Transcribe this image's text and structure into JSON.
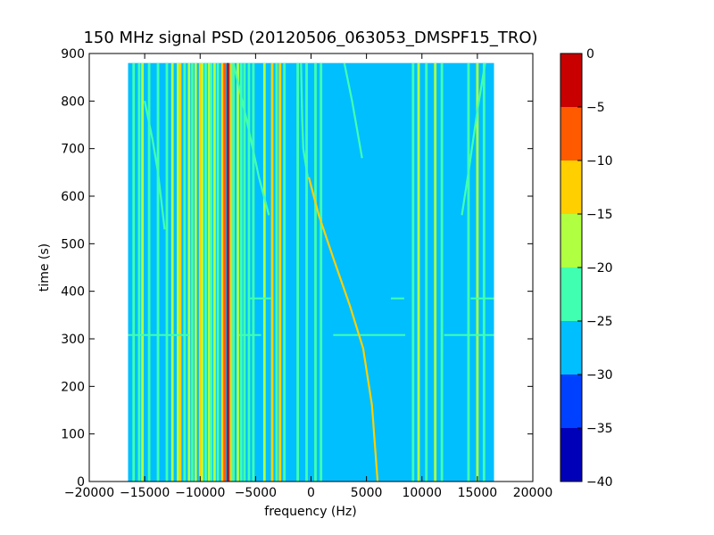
{
  "chart_data": {
    "type": "heatmap",
    "title": "150 MHz signal PSD (20120506_063053_DMSPF15_TRO)",
    "xlabel": "frequency (Hz)",
    "ylabel": "time (s)",
    "xlim": [
      -20000,
      20000
    ],
    "ylim": [
      0,
      900
    ],
    "xticks": [
      "−20000",
      "−15000",
      "−10000",
      "−5000",
      "0",
      "5000",
      "10000",
      "15000",
      "20000"
    ],
    "xtick_values": [
      -20000,
      -15000,
      -10000,
      -5000,
      0,
      5000,
      10000,
      15000,
      20000
    ],
    "yticks": [
      "0",
      "100",
      "200",
      "300",
      "400",
      "500",
      "600",
      "700",
      "800",
      "900"
    ],
    "ytick_values": [
      0,
      100,
      200,
      300,
      400,
      500,
      600,
      700,
      800,
      900
    ],
    "data_extent": {
      "freq_range": [
        -16500,
        16500
      ],
      "time_range": [
        0,
        880
      ]
    },
    "background_level": -27.5,
    "colorbar": {
      "levels": [
        -40,
        -35,
        -30,
        -25,
        -20,
        -15,
        -10,
        -5,
        0
      ],
      "ticks": [
        "0",
        "−5",
        "−10",
        "−15",
        "−20",
        "−25",
        "−30",
        "−35",
        "−40"
      ],
      "colors": [
        "#0000b8",
        "#0040ff",
        "#00bfff",
        "#40ffb0",
        "#b0ff40",
        "#ffcf00",
        "#ff5a00",
        "#c80000"
      ]
    },
    "spectral_lines": [
      {
        "freq": -16000,
        "level": -22
      },
      {
        "freq": -15500,
        "level": -22
      },
      {
        "freq": -15200,
        "level": -18
      },
      {
        "freq": -14600,
        "level": -22
      },
      {
        "freq": -13800,
        "level": -22
      },
      {
        "freq": -13000,
        "level": -22
      },
      {
        "freq": -12500,
        "level": -18
      },
      {
        "freq": -12000,
        "level": -18
      },
      {
        "freq": -11800,
        "level": -12
      },
      {
        "freq": -11400,
        "level": -22
      },
      {
        "freq": -11000,
        "level": -18
      },
      {
        "freq": -10700,
        "level": -22
      },
      {
        "freq": -10400,
        "level": -18
      },
      {
        "freq": -10000,
        "level": -12
      },
      {
        "freq": -9800,
        "level": -18
      },
      {
        "freq": -9500,
        "level": -22
      },
      {
        "freq": -9200,
        "level": -18
      },
      {
        "freq": -9000,
        "level": -22
      },
      {
        "freq": -8700,
        "level": -18
      },
      {
        "freq": -8400,
        "level": -22
      },
      {
        "freq": -8000,
        "level": -12
      },
      {
        "freq": -7800,
        "level": -7
      },
      {
        "freq": -7500,
        "level": -3
      },
      {
        "freq": -7200,
        "level": -12
      },
      {
        "freq": -7000,
        "level": -22
      },
      {
        "freq": -6600,
        "level": -18
      },
      {
        "freq": -6300,
        "level": -22
      },
      {
        "freq": -6000,
        "level": -22
      },
      {
        "freq": -5600,
        "level": -22
      },
      {
        "freq": -5200,
        "level": -22
      },
      {
        "freq": -4200,
        "level": -18
      },
      {
        "freq": -3500,
        "level": -12
      },
      {
        "freq": -3100,
        "level": -22
      },
      {
        "freq": -2800,
        "level": -12
      },
      {
        "freq": -2400,
        "level": -22
      },
      {
        "freq": -1200,
        "level": -22
      },
      {
        "freq": -400,
        "level": -22
      },
      {
        "freq": 400,
        "level": -22
      },
      {
        "freq": 900,
        "level": -22
      },
      {
        "freq": 9200,
        "level": -22
      },
      {
        "freq": 9700,
        "level": -18
      },
      {
        "freq": 10400,
        "level": -22
      },
      {
        "freq": 11200,
        "level": -18
      },
      {
        "freq": 11800,
        "level": -22
      },
      {
        "freq": 14200,
        "level": -22
      },
      {
        "freq": 15000,
        "level": -18
      },
      {
        "freq": 15600,
        "level": -22
      }
    ],
    "doppler_tracks": [
      {
        "level": -15,
        "points": [
          [
            -200,
            640
          ],
          [
            700,
            560
          ],
          [
            2000,
            470
          ],
          [
            3500,
            370
          ],
          [
            4700,
            280
          ],
          [
            5500,
            160
          ],
          [
            6000,
            0
          ]
        ]
      },
      {
        "level": -22,
        "points": [
          [
            -300,
            640
          ],
          [
            -700,
            700
          ],
          [
            -800,
            760
          ],
          [
            -900,
            880
          ]
        ]
      },
      {
        "level": -22,
        "points": [
          [
            3000,
            880
          ],
          [
            3700,
            800
          ],
          [
            4600,
            680
          ]
        ]
      },
      {
        "level": -22,
        "points": [
          [
            -15000,
            800
          ],
          [
            -14300,
            720
          ],
          [
            -13800,
            650
          ],
          [
            -13200,
            530
          ]
        ]
      },
      {
        "level": -22,
        "points": [
          [
            -7000,
            880
          ],
          [
            -5800,
            760
          ],
          [
            -4700,
            640
          ],
          [
            -3800,
            560
          ]
        ]
      },
      {
        "level": -22,
        "points": [
          [
            15700,
            880
          ],
          [
            15000,
            780
          ],
          [
            14200,
            650
          ],
          [
            13600,
            560
          ]
        ]
      }
    ],
    "horizontal_streaks": [
      {
        "time": 308,
        "level": -22,
        "segments": [
          [
            -16500,
            -11000
          ],
          [
            -6500,
            -4500
          ],
          [
            2000,
            8500
          ],
          [
            12000,
            16500
          ]
        ]
      },
      {
        "time": 385,
        "level": -22,
        "segments": [
          [
            -5500,
            -3600
          ],
          [
            7200,
            8400
          ],
          [
            14400,
            16500
          ]
        ]
      }
    ]
  }
}
